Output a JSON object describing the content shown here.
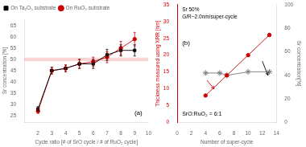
{
  "chart_data": [
    {
      "type": "line",
      "xlabel": "Cycle ratio [# of SrO cycle / # of RuO₂ cycle]",
      "ylabel": "Sr concentration [%]",
      "xlim": [
        1,
        10
      ],
      "xticks": [
        2,
        3,
        4,
        5,
        6,
        7,
        8,
        9,
        10
      ],
      "ylim": [
        22,
        68
      ],
      "yticks": [
        25,
        30,
        35,
        40,
        45,
        50,
        55,
        60,
        65
      ],
      "grid": false,
      "legend": "upper left",
      "hband": {
        "y": [
          49.2,
          50.8
        ],
        "color": "#f4b8b8"
      },
      "annotations": [
        "(a)"
      ],
      "series": [
        {
          "name": "On Ta₂O₅ substrate",
          "x": [
            2,
            3,
            4,
            5,
            6,
            7,
            8,
            9
          ],
          "values": [
            28,
            45,
            46,
            48,
            48,
            52,
            54,
            54
          ],
          "yerr": [
            1.0,
            1.5,
            1.5,
            2.0,
            2.0,
            2.5,
            2.5,
            2.5
          ],
          "color": "#000000",
          "marker": "square",
          "line_style": "solid"
        },
        {
          "name": "On RuO₂ substrate",
          "x": [
            2,
            3,
            4,
            5,
            6,
            7,
            8,
            9
          ],
          "values": [
            27,
            45,
            46,
            48,
            49,
            51,
            55,
            59
          ],
          "yerr": [
            1.0,
            1.5,
            1.5,
            2.0,
            2.0,
            2.5,
            3.0,
            3.0
          ],
          "color": "#cc0000",
          "marker": "circle",
          "line_style": "solid"
        }
      ]
    },
    {
      "type": "line",
      "xlabel": "Number of super-cycle",
      "ylabel": "Thickness measured using XRR [nm]",
      "y2label": "Sr concentration[%]",
      "xlim": [
        0,
        14
      ],
      "xticks": [
        0,
        2,
        4,
        6,
        8,
        10,
        12,
        14
      ],
      "ylim": [
        0,
        35
      ],
      "yticks": [
        0,
        5,
        10,
        15,
        20,
        25,
        30,
        35
      ],
      "y2lim": [
        0,
        100
      ],
      "y2ticks": [
        0,
        20,
        40,
        60,
        80,
        100
      ],
      "grid": false,
      "annotations": [
        "Sr 50%\nG/R~2.0nm/super-cycle",
        "SrO:RuO₂ = 6:1",
        "(b)"
      ],
      "arrows": [
        {
          "from": [
            4.2,
            12.5
          ],
          "to": [
            5.2,
            10.0
          ],
          "color": "#cc0000"
        },
        {
          "from": [
            12.0,
            52
          ],
          "to": [
            12.8,
            40
          ],
          "color": "#000000",
          "axis": "y2"
        }
      ],
      "series": [
        {
          "x": [
            4,
            7,
            10,
            13
          ],
          "values": [
            8,
            14,
            20,
            26
          ],
          "color": "#cc0000",
          "marker": "circle",
          "line_style": "solid"
        },
        {
          "x": [
            4,
            6,
            7,
            10,
            13
          ],
          "values": [
            42,
            42,
            40,
            43,
            43
          ],
          "color": "#777777",
          "marker": "star",
          "line_style": "solid",
          "axis": "y2"
        }
      ]
    }
  ]
}
